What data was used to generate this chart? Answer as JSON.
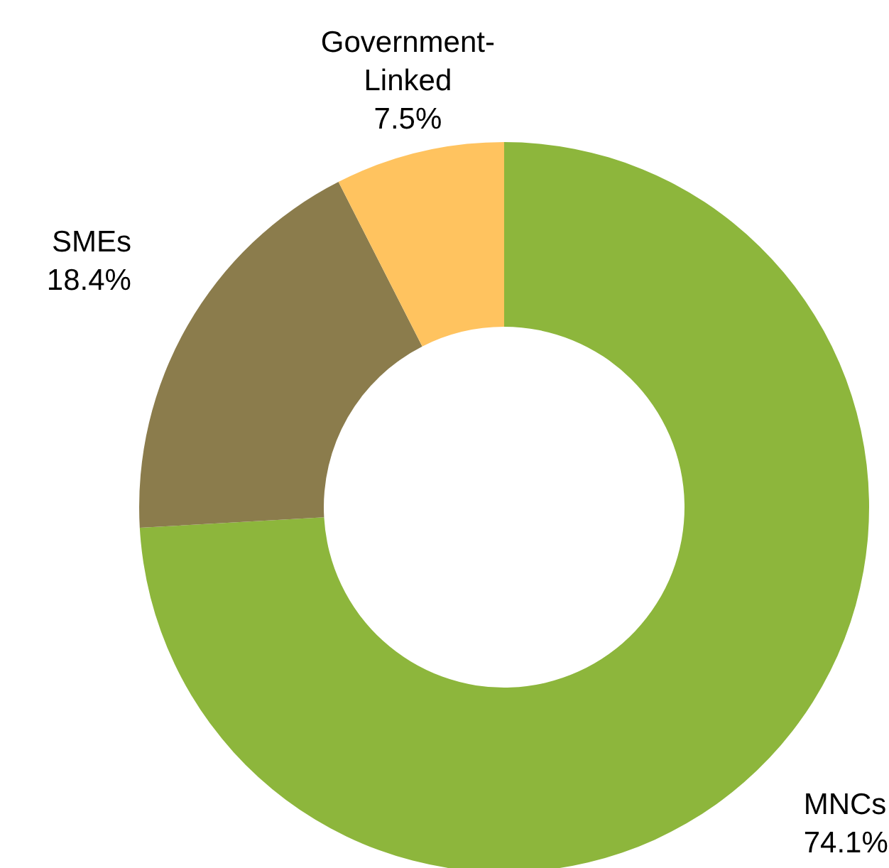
{
  "chart_data": {
    "type": "donut",
    "categories": [
      "MNCs",
      "SMEs",
      "Government-Linked"
    ],
    "values": [
      74.1,
      18.4,
      7.5
    ],
    "colors": [
      "#8db63c",
      "#8b7c4c",
      "#ffc35f"
    ],
    "value_labels": [
      "74.1%",
      "18.4%",
      "7.5%"
    ],
    "legend": false
  }
}
